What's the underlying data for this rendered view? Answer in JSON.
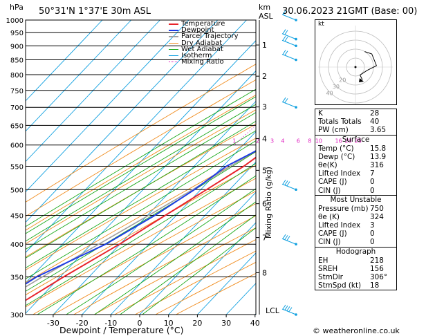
{
  "header": {
    "hpa_label": "hPa",
    "location": "50°31'N  1°37'E  30m  ASL",
    "km_label": "km",
    "asl_label": "ASL",
    "datetime": "30.06.2023  21GMT  (Base: 00)"
  },
  "xaxis_title": "Dewpoint / Temperature (°C)",
  "mixing_axis_title": "Mixing Ratio (g/kg)",
  "lcl_label": "LCL",
  "credit": "© weatheronline.co.uk",
  "hodograph_label": "kt",
  "hodo_ring_labels": [
    "40",
    "30",
    "20"
  ],
  "legend": [
    {
      "label": "Temperature",
      "color": "#e8232a",
      "style": "solid"
    },
    {
      "label": "Dewpoint",
      "color": "#1e3ce6",
      "style": "solid"
    },
    {
      "label": "Parcel Trajectory",
      "color": "#a0a0a0",
      "style": "solid"
    },
    {
      "label": "Dry Adiabat",
      "color": "#f08c1e",
      "style": "solid"
    },
    {
      "label": "Wet Adiabat",
      "color": "#18a818",
      "style": "solid"
    },
    {
      "label": "Isotherm",
      "color": "#10a0e0",
      "style": "solid"
    },
    {
      "label": "Mixing Ratio",
      "color": "#e020c0",
      "style": "dotted"
    }
  ],
  "indices": [
    {
      "label": "K",
      "value": "28"
    },
    {
      "label": "Totals Totals",
      "value": "40"
    },
    {
      "label": "PW (cm)",
      "value": "3.65"
    }
  ],
  "surface": {
    "title": "Surface",
    "rows": [
      {
        "label": "Temp (°C)",
        "value": "15.8"
      },
      {
        "label": "Dewp (°C)",
        "value": "13.9"
      },
      {
        "label": "θe(K)",
        "value": "316"
      },
      {
        "label": "Lifted Index",
        "value": "7"
      },
      {
        "label": "CAPE (J)",
        "value": "0"
      },
      {
        "label": "CIN (J)",
        "value": "0"
      }
    ]
  },
  "most_unstable": {
    "title": "Most Unstable",
    "rows": [
      {
        "label": "Pressure (mb)",
        "value": "750"
      },
      {
        "label": "θe (K)",
        "value": "324"
      },
      {
        "label": "Lifted Index",
        "value": "3"
      },
      {
        "label": "CAPE (J)",
        "value": "0"
      },
      {
        "label": "CIN (J)",
        "value": "0"
      }
    ]
  },
  "hodograph_table": {
    "title": "Hodograph",
    "rows": [
      {
        "label": "EH",
        "value": "218"
      },
      {
        "label": "SREH",
        "value": "156"
      },
      {
        "label": "StmDir",
        "value": "306°"
      },
      {
        "label": "StmSpd (kt)",
        "value": "18"
      }
    ]
  },
  "colors": {
    "temperature": "#e8232a",
    "dewpoint": "#1e3ce6",
    "parcel": "#a0a0a0",
    "dry_adiabat": "#f08c1e",
    "wet_adiabat": "#18a818",
    "isotherm": "#10a0e0",
    "mixing_ratio": "#e020c0",
    "wind_barb": "#10a0e0"
  },
  "chart_data": {
    "type": "line",
    "xlabel": "Dewpoint / Temperature (°C)",
    "ylabel": "hPa",
    "xlim": [
      -35,
      40
    ],
    "ylim": [
      1000,
      300
    ],
    "x_ticks": [
      -30,
      -20,
      -10,
      0,
      10,
      20,
      30,
      40
    ],
    "pressure_levels": [
      300,
      350,
      400,
      450,
      500,
      550,
      600,
      650,
      700,
      750,
      800,
      850,
      900,
      950,
      1000
    ],
    "km_ticks": [
      {
        "km": "1",
        "p": 903
      },
      {
        "km": "2",
        "p": 795
      },
      {
        "km": "3",
        "p": 701
      },
      {
        "km": "4",
        "p": 616
      },
      {
        "km": "5",
        "p": 541
      },
      {
        "km": "6",
        "p": 472
      },
      {
        "km": "7",
        "p": 411
      },
      {
        "km": "8",
        "p": 356
      }
    ],
    "mixing_ratio_labels": [
      "1",
      "2",
      "3",
      "4",
      "6",
      "8",
      "10",
      "16",
      "20",
      "25"
    ],
    "mixing_ratio_values": [
      1,
      2,
      3,
      4,
      6,
      8,
      10,
      16,
      20,
      25
    ],
    "series": [
      {
        "name": "Temperature",
        "p": [
          1000,
          950,
          900,
          850,
          800,
          750,
          700,
          650,
          600,
          550,
          500,
          450,
          400,
          350,
          300
        ],
        "values": [
          15.8,
          13.0,
          10.2,
          7.4,
          4.6,
          1.8,
          -1.6,
          -5.6,
          -9.6,
          -12.8,
          -18.0,
          -23.8,
          -30.2,
          -38.8,
          -47.6
        ]
      },
      {
        "name": "Dewpoint",
        "p": [
          1000,
          950,
          900,
          850,
          800,
          750,
          700,
          650,
          600,
          550,
          500,
          450,
          400,
          350,
          300
        ],
        "values": [
          13.9,
          11.4,
          9.8,
          6.6,
          3.8,
          0.8,
          -2.4,
          -6.4,
          -11.6,
          -18.8,
          -22.2,
          -27.4,
          -35.0,
          -48.2,
          -56.0
        ]
      },
      {
        "name": "Parcel Trajectory",
        "p": [
          1000,
          950,
          900,
          850,
          800,
          750,
          700,
          650,
          600,
          550,
          500,
          450,
          400,
          350,
          300
        ],
        "values": [
          15.0,
          11.6,
          8.8,
          6.0,
          3.0,
          0.0,
          -3.4,
          -7.6,
          -12.4,
          -17.4,
          -22.8,
          -29.6,
          -37.4,
          -46.2,
          -55.6
        ]
      }
    ],
    "wind_profile": [
      {
        "p": 300,
        "speed_kt": 35,
        "dir": 295
      },
      {
        "p": 400,
        "speed_kt": 30,
        "dir": 290
      },
      {
        "p": 500,
        "speed_kt": 25,
        "dir": 285
      },
      {
        "p": 700,
        "speed_kt": 20,
        "dir": 280
      },
      {
        "p": 850,
        "speed_kt": 15,
        "dir": 300
      },
      {
        "p": 900,
        "speed_kt": 15,
        "dir": 310
      },
      {
        "p": 925,
        "speed_kt": 15,
        "dir": 320
      },
      {
        "p": 1000,
        "speed_kt": 10,
        "dir": 330
      }
    ],
    "hodograph": {
      "u": [
        1,
        4,
        6,
        2,
        -1,
        0
      ],
      "v": [
        6,
        5,
        0,
        -2,
        -4,
        -6
      ]
    }
  }
}
